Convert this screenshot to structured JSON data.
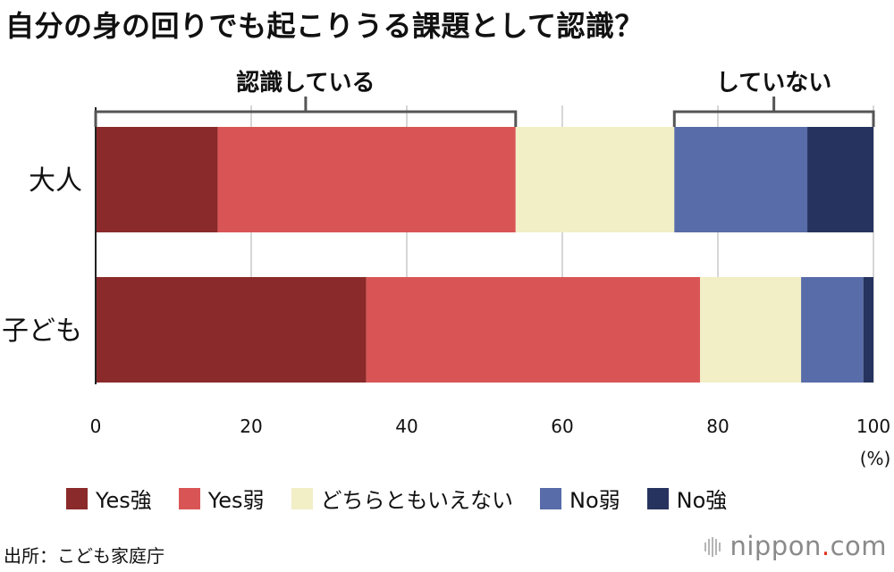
{
  "title": "自分の身の回りでも起こりうる課題として認識？",
  "groups": {
    "recognized": "認識している",
    "not_recognized": "していない"
  },
  "chart_data": {
    "type": "bar",
    "orientation": "horizontal",
    "stacked": true,
    "categories": [
      "大人",
      "子ども"
    ],
    "series": [
      {
        "name": "Yes強",
        "color": "#8b2a2a",
        "values": [
          15.7,
          34.8
        ]
      },
      {
        "name": "Yes弱",
        "color": "#d95555",
        "values": [
          38.3,
          42.9
        ]
      },
      {
        "name": "どちらともいえない",
        "color": "#f2eec6",
        "values": [
          20.4,
          13.0
        ]
      },
      {
        "name": "No弱",
        "color": "#576ca8",
        "values": [
          17.1,
          8.0
        ]
      },
      {
        "name": "No強",
        "color": "#26335e",
        "values": [
          8.5,
          1.3
        ]
      }
    ],
    "xlim": [
      0,
      100
    ],
    "xticks": [
      0,
      20,
      40,
      60,
      80,
      100
    ],
    "x_unit": "(%)",
    "grid": true,
    "legend_position": "bottom"
  },
  "source": "出所：こども家庭庁",
  "logo": {
    "main": "nippon",
    "dot": ".",
    "suffix": "com"
  }
}
